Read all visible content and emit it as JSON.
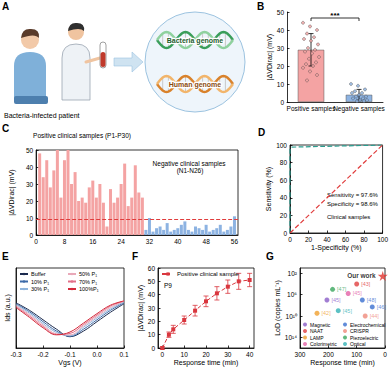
{
  "panel_a": {
    "title": "A",
    "patient": "Bacteria-infected patient",
    "genomes": [
      "Bacteria genome",
      "Human genome"
    ]
  },
  "chart_data": [
    {
      "title": "B",
      "type": "bar",
      "categories": [
        "Positive samples",
        "Negative samples"
      ],
      "values": [
        29,
        4
      ],
      "errors": [
        9,
        3
      ],
      "colors": [
        "#f4a3a3",
        "#8db3e2"
      ],
      "points": [
        [
          44,
          42,
          40,
          38,
          36,
          35,
          34,
          32,
          30,
          29,
          28,
          27,
          25,
          24,
          22,
          21,
          20,
          19,
          17,
          15,
          12
        ],
        [
          10,
          9,
          7,
          6,
          5,
          5,
          4,
          3,
          3,
          2,
          2,
          1,
          1,
          0.5,
          0.5
        ]
      ],
      "ylabel": "|ΔVDirac| (mV)",
      "ylim": [
        0,
        50
      ],
      "yticks": [
        0,
        10,
        20,
        30,
        40,
        50
      ],
      "annotations": [
        "***"
      ]
    },
    {
      "title": "C",
      "type": "bar",
      "series": [
        {
          "color": "#f4a3a3",
          "x": [
            1,
            2,
            3,
            4,
            5,
            6,
            7,
            8,
            9,
            10,
            11,
            12,
            13,
            14,
            15,
            16,
            17,
            18,
            19,
            20,
            21,
            22,
            23,
            24,
            25,
            26,
            27,
            28,
            29,
            30
          ],
          "values": [
            48,
            34,
            44,
            28,
            38,
            50,
            22,
            44,
            50,
            30,
            37,
            20,
            22,
            19,
            28,
            32,
            22,
            30,
            19,
            5,
            27,
            19,
            22,
            30,
            42,
            17,
            22,
            41,
            25,
            22
          ]
        },
        {
          "color": "#8db3e2",
          "x": [
            31,
            32,
            33,
            34,
            35,
            36,
            37,
            38,
            39,
            40,
            41,
            42,
            43,
            44,
            45,
            46,
            47,
            48,
            49,
            50,
            51,
            52,
            53,
            54,
            55,
            56
          ],
          "values": [
            3,
            10,
            2,
            4,
            5,
            3,
            7,
            2,
            3,
            4,
            6,
            8,
            3,
            2,
            5,
            4,
            3,
            6,
            2,
            3,
            4,
            6,
            2,
            3,
            5,
            11
          ]
        }
      ],
      "threshold": 9,
      "annotations": [
        "Positive clinical samples (P1-P30)",
        "Negative clinical samples (N1-N26)"
      ],
      "ylabel": "|ΔVDirac| (mV)",
      "xlim": [
        0,
        57
      ],
      "xticks": [
        0,
        8,
        16,
        24,
        32,
        40,
        48,
        56
      ],
      "ylim": [
        0,
        50
      ],
      "yticks": [
        0,
        10,
        20,
        30,
        40,
        50
      ]
    },
    {
      "title": "D",
      "type": "line",
      "series": [
        {
          "color": "#2a9d8f",
          "line_style": "dashed",
          "x": [
            0,
            0,
            2,
            100
          ],
          "values": [
            0,
            96,
            97.6,
            100
          ]
        },
        {
          "color": "#e03c3c",
          "line_style": "dashed",
          "x": [
            0,
            100
          ],
          "values": [
            0,
            100
          ]
        }
      ],
      "annotations": [
        "Sensitivity = 97.6%",
        "Specificity = 98.6%",
        "Clinical samples"
      ],
      "xlabel": "1-Specificity (%)",
      "ylabel": "Sensitivity (%)",
      "xlim": [
        0,
        100
      ],
      "xticks": [
        0,
        20,
        40,
        60,
        80,
        100
      ],
      "ylim": [
        0,
        100
      ],
      "yticks": [
        0,
        20,
        40,
        60,
        80,
        100
      ]
    },
    {
      "title": "E",
      "type": "line",
      "x": [
        -0.3,
        -0.25,
        -0.2,
        -0.15,
        -0.1,
        -0.05,
        0,
        0.05,
        0.1
      ],
      "series": [
        {
          "name": "Buffer",
          "color": "#1b2a4e",
          "values": [
            0.96,
            0.8,
            0.6,
            0.4,
            0.24,
            0.36,
            0.56,
            0.76,
            0.94
          ]
        },
        {
          "name": "10% P₁",
          "color": "#3d6aa8",
          "values": [
            0.94,
            0.77,
            0.56,
            0.36,
            0.25,
            0.4,
            0.6,
            0.8,
            0.96
          ]
        },
        {
          "name": "30% P₁",
          "color": "#8fb4dc",
          "values": [
            0.92,
            0.74,
            0.52,
            0.33,
            0.26,
            0.44,
            0.64,
            0.83,
            0.98
          ]
        },
        {
          "name": "50% P₁",
          "color": "#e9a9b9",
          "values": [
            0.9,
            0.71,
            0.49,
            0.3,
            0.28,
            0.47,
            0.67,
            0.86,
            0.99
          ]
        },
        {
          "name": "70% P₁",
          "color": "#e27089",
          "values": [
            0.88,
            0.68,
            0.46,
            0.29,
            0.31,
            0.5,
            0.7,
            0.89,
            1.0
          ]
        },
        {
          "name": "100%P₁",
          "color": "#d4293a",
          "values": [
            0.86,
            0.65,
            0.43,
            0.28,
            0.34,
            0.53,
            0.73,
            0.91,
            1.0
          ]
        }
      ],
      "xlabel": "Vgs (V)",
      "ylabel": "Ids (a.u.)",
      "xlim": [
        -0.3,
        0.1
      ],
      "xticks": [
        -0.3,
        -0.2,
        -0.1,
        {
          "value": 0,
          "label": "0.0"
        },
        0.1
      ],
      "ylim": [
        0,
        1.7
      ],
      "tick_labels": "x",
      "legend": "upper left"
    },
    {
      "title": "F",
      "type": "line",
      "series": [
        {
          "name": "Positive clinical sample",
          "color": "#d9363e",
          "marker": "square",
          "line_style": "dashed",
          "x": [
            0,
            3,
            5,
            10,
            15,
            20,
            25,
            30,
            35,
            40
          ],
          "values": [
            0,
            10,
            14,
            21,
            28,
            35,
            41,
            46,
            50,
            51
          ],
          "errors": [
            1,
            2,
            3,
            3,
            4,
            4,
            5,
            5,
            6,
            5
          ]
        }
      ],
      "annotations": [
        "P9"
      ],
      "xlabel": "Response time (min)",
      "ylabel": "|ΔVDirac| (mV)",
      "xlim": [
        -2,
        42
      ],
      "xticks": [
        0,
        10,
        20,
        30,
        40
      ],
      "ylim": [
        0,
        60
      ],
      "yticks": [
        0,
        10,
        20,
        30,
        40,
        50,
        60
      ],
      "legend": "upper left"
    },
    {
      "title": "G",
      "type": "scatter",
      "log": "y",
      "marker": "circle",
      "series": [
        {
          "name": "Magnetic",
          "color": "#8a5cc7",
          "x": [
            205
          ],
          "values": [
            10000000
          ],
          "point_labels": [
            "[45]"
          ]
        },
        {
          "name": "Electrochemical",
          "color": "#3a6fd0",
          "x": [
            80,
            45
          ],
          "values": [
            10000000,
            200000000
          ],
          "point_labels": [
            "[48]",
            "[46]"
          ]
        },
        {
          "name": "NAAT",
          "color": "#e04040",
          "x": [
            100
          ],
          "values": [
            10000
          ],
          "point_labels": [
            "[43]"
          ]
        },
        {
          "name": "CRISPR",
          "color": "#ef8a7a",
          "x": [
            70
          ],
          "values": [
            10000000000
          ],
          "point_labels": [
            "[44]"
          ]
        },
        {
          "name": "LAMP",
          "color": "#f0a030",
          "x": [
            240
          ],
          "values": [
            3000000000
          ],
          "point_labels": [
            "[42]"
          ]
        },
        {
          "name": "Piezoelectric",
          "color": "#3aa65e",
          "x": [
            185
          ],
          "values": [
            100000
          ],
          "point_labels": [
            "[47]"
          ]
        },
        {
          "name": "Colorimetric",
          "color": "#e262a6",
          "x": [
            130
          ],
          "values": [
            600000
          ],
          "point_labels": [
            "[45]"
          ]
        },
        {
          "name": "Optical",
          "color": "#33b1b5",
          "x": [
            165
          ],
          "values": [
            1000000000
          ],
          "point_labels": [
            "[45]"
          ]
        }
      ],
      "highlight": {
        "text": "Our work",
        "color": "#e0322c",
        "marker": "star",
        "x": 8,
        "value": 300
      },
      "xlabel": "Response time (min)",
      "ylabel": "LoD (copies mL⁻¹)",
      "xlim": [
        300,
        0
      ],
      "xticks": [
        300,
        200,
        100,
        0
      ],
      "ylim": [
        1e+16,
        10
      ],
      "yticks": [
        {
          "value": 100,
          "label": "10²"
        },
        {
          "value": 1000000,
          "label": "10⁶"
        },
        {
          "value": 10000000000,
          "label": "10¹⁰"
        },
        {
          "value": 100000000000000,
          "label": "10¹⁴"
        }
      ],
      "legend": "lower left"
    }
  ]
}
